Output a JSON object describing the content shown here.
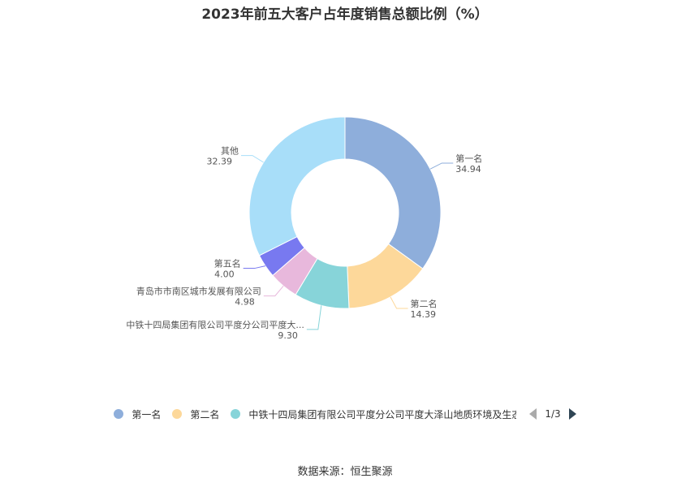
{
  "chart_data": {
    "type": "pie",
    "title": "2023年前五大客户占年度销售总额比例（%）",
    "slices": [
      {
        "label": "第一名",
        "display_label": "第一名",
        "value": 34.94,
        "value_text": "34.94",
        "color": "#8eaedb"
      },
      {
        "label": "第二名",
        "display_label": "第二名",
        "value": 14.39,
        "value_text": "14.39",
        "color": "#fdd89a"
      },
      {
        "label": "中铁十四局集团有限公司平度分公司平度大泽山地质环境及生态治",
        "display_label": "中铁十四局集团有限公司平度分公司平度大...",
        "value": 9.3,
        "value_text": "9.30",
        "color": "#87d4d9"
      },
      {
        "label": "青岛市市南区城市发展有限公司",
        "display_label": "青岛市市南区城市发展有限公司",
        "value": 4.98,
        "value_text": "4.98",
        "color": "#e8b8dc"
      },
      {
        "label": "第五名",
        "display_label": "第五名",
        "value": 4.0,
        "value_text": "4.00",
        "color": "#7879f0"
      },
      {
        "label": "其他",
        "display_label": "其他",
        "value": 32.39,
        "value_text": "32.39",
        "color": "#a8def9"
      }
    ],
    "legend": {
      "placement": "bottom",
      "visible_items": [
        {
          "label": "第一名",
          "color": "#8eaedb"
        },
        {
          "label": "第二名",
          "color": "#fdd89a"
        },
        {
          "label": "中铁十四局集团有限公司平度分公司平度大泽山地质环境及生态治",
          "color": "#87d4d9"
        }
      ],
      "page": "1/3"
    }
  },
  "source": "数据来源：恒生聚源"
}
